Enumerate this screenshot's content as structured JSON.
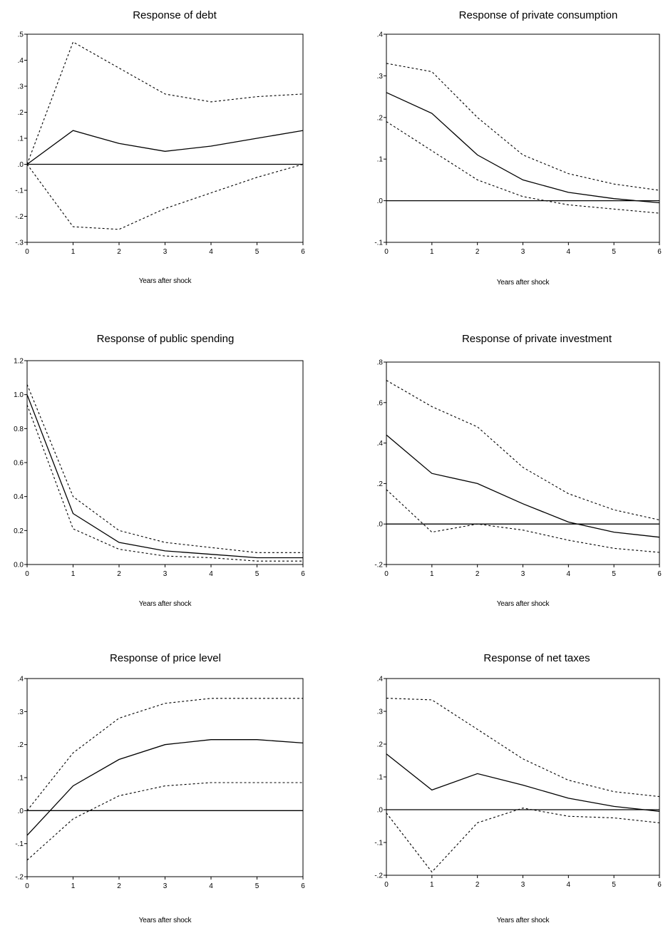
{
  "chart_data": [
    {
      "type": "line",
      "title": "Response of debt",
      "xlabel": "Years after shock",
      "ylabel": "",
      "x": [
        0,
        1,
        2,
        3,
        4,
        5,
        6
      ],
      "xlim": [
        0,
        6
      ],
      "ylim": [
        -0.3,
        0.5
      ],
      "yticks": [
        -0.3,
        -0.2,
        -0.1,
        0.0,
        0.1,
        0.2,
        0.3,
        0.4,
        0.5
      ],
      "ytick_labels": [
        "-.3",
        "-.2",
        "-.1",
        ".0",
        ".1",
        ".2",
        ".3",
        ".4",
        ".5"
      ],
      "xticks": [
        "0",
        "1",
        "2",
        "3",
        "4",
        "5",
        "6"
      ],
      "zero_line": true,
      "series": [
        {
          "role": "response",
          "style": "solid",
          "values": [
            0.0,
            0.13,
            0.08,
            0.05,
            0.07,
            0.1,
            0.13
          ]
        },
        {
          "role": "upper",
          "style": "dashed",
          "values": [
            0.0,
            0.47,
            0.37,
            0.27,
            0.24,
            0.26,
            0.27
          ]
        },
        {
          "role": "lower",
          "style": "dashed",
          "values": [
            0.0,
            -0.24,
            -0.25,
            -0.17,
            -0.11,
            -0.05,
            0.0
          ]
        }
      ]
    },
    {
      "type": "line",
      "title": "Response of private consumption",
      "xlabel": "Years after shock",
      "ylabel": "",
      "x": [
        0,
        1,
        2,
        3,
        4,
        5,
        6
      ],
      "xlim": [
        0,
        6
      ],
      "ylim": [
        -0.1,
        0.4
      ],
      "yticks": [
        -0.1,
        0.0,
        0.1,
        0.2,
        0.3,
        0.4
      ],
      "ytick_labels": [
        "-.1",
        ".0",
        ".1",
        ".2",
        ".3",
        ".4"
      ],
      "xticks": [
        "0",
        "1",
        "2",
        "3",
        "4",
        "5",
        "6"
      ],
      "zero_line": true,
      "series": [
        {
          "role": "response",
          "style": "solid",
          "values": [
            0.26,
            0.21,
            0.11,
            0.05,
            0.02,
            0.005,
            -0.005
          ]
        },
        {
          "role": "upper",
          "style": "dashed",
          "values": [
            0.33,
            0.31,
            0.2,
            0.11,
            0.065,
            0.04,
            0.025
          ]
        },
        {
          "role": "lower",
          "style": "dashed",
          "values": [
            0.19,
            0.12,
            0.05,
            0.01,
            -0.01,
            -0.02,
            -0.03
          ]
        }
      ]
    },
    {
      "type": "line",
      "title": "Response of public spending",
      "xlabel": "Years after shock",
      "ylabel": "",
      "x": [
        0,
        1,
        2,
        3,
        4,
        5,
        6
      ],
      "xlim": [
        0,
        6
      ],
      "ylim": [
        0.0,
        1.2
      ],
      "yticks": [
        0.0,
        0.2,
        0.4,
        0.6,
        0.8,
        1.0,
        1.2
      ],
      "ytick_labels": [
        "0.0",
        "0.2",
        "0.4",
        "0.6",
        "0.8",
        "1.0",
        "1.2"
      ],
      "xticks": [
        "0",
        "1",
        "2",
        "3",
        "4",
        "5",
        "6"
      ],
      "zero_line": false,
      "series": [
        {
          "role": "response",
          "style": "solid",
          "values": [
            1.0,
            0.3,
            0.13,
            0.08,
            0.06,
            0.04,
            0.04
          ]
        },
        {
          "role": "upper",
          "style": "dashed",
          "values": [
            1.06,
            0.4,
            0.2,
            0.13,
            0.1,
            0.07,
            0.07
          ]
        },
        {
          "role": "lower",
          "style": "dashed",
          "values": [
            0.94,
            0.21,
            0.09,
            0.05,
            0.04,
            0.02,
            0.02
          ]
        }
      ]
    },
    {
      "type": "line",
      "title": "Response of private investment",
      "xlabel": "Years after shock",
      "ylabel": "",
      "x": [
        0,
        1,
        2,
        3,
        4,
        5,
        6
      ],
      "xlim": [
        0,
        6
      ],
      "ylim": [
        -0.2,
        0.8
      ],
      "yticks": [
        -0.2,
        0.0,
        0.2,
        0.4,
        0.6,
        0.8
      ],
      "ytick_labels": [
        "-.2",
        ".0",
        ".2",
        ".4",
        ".6",
        ".8"
      ],
      "xticks": [
        "0",
        "1",
        "2",
        "3",
        "4",
        "5",
        "6"
      ],
      "zero_line": true,
      "series": [
        {
          "role": "response",
          "style": "solid",
          "values": [
            0.44,
            0.25,
            0.2,
            0.1,
            0.01,
            -0.04,
            -0.065
          ]
        },
        {
          "role": "upper",
          "style": "dashed",
          "values": [
            0.71,
            0.58,
            0.48,
            0.28,
            0.15,
            0.07,
            0.02
          ]
        },
        {
          "role": "lower",
          "style": "dashed",
          "values": [
            0.17,
            -0.04,
            0.0,
            -0.03,
            -0.08,
            -0.12,
            -0.14
          ]
        }
      ]
    },
    {
      "type": "line",
      "title": "Response of price level",
      "xlabel": "Years after shock",
      "ylabel": "",
      "x": [
        0,
        1,
        2,
        3,
        4,
        5,
        6
      ],
      "xlim": [
        0,
        6
      ],
      "ylim": [
        -0.2,
        0.4
      ],
      "yticks": [
        -0.2,
        -0.1,
        0.0,
        0.1,
        0.2,
        0.3,
        0.4
      ],
      "ytick_labels": [
        "-.2",
        "-.1",
        ".0",
        ".1",
        ".2",
        ".3",
        ".4"
      ],
      "xticks": [
        "0",
        "1",
        "2",
        "3",
        "4",
        "5",
        "6"
      ],
      "zero_line": true,
      "series": [
        {
          "role": "response",
          "style": "solid",
          "values": [
            -0.075,
            0.075,
            0.155,
            0.2,
            0.215,
            0.215,
            0.205
          ]
        },
        {
          "role": "upper",
          "style": "dashed",
          "values": [
            0.0,
            0.175,
            0.28,
            0.325,
            0.34,
            0.34,
            0.34
          ]
        },
        {
          "role": "lower",
          "style": "dashed",
          "values": [
            -0.15,
            -0.025,
            0.045,
            0.075,
            0.085,
            0.085,
            0.085
          ]
        }
      ]
    },
    {
      "type": "line",
      "title": "Response of net taxes",
      "xlabel": "Years after shock",
      "ylabel": "",
      "x": [
        0,
        1,
        2,
        3,
        4,
        5,
        6
      ],
      "xlim": [
        0,
        6
      ],
      "ylim": [
        -0.2,
        0.4
      ],
      "yticks": [
        -0.2,
        -0.1,
        0.0,
        0.1,
        0.2,
        0.3,
        0.4
      ],
      "ytick_labels": [
        "-.2",
        "-.1",
        ".0",
        ".1",
        ".2",
        ".3",
        ".4"
      ],
      "xticks": [
        "0",
        "1",
        "2",
        "3",
        "4",
        "5",
        "6"
      ],
      "zero_line": true,
      "series": [
        {
          "role": "response",
          "style": "solid",
          "values": [
            0.17,
            0.06,
            0.11,
            0.075,
            0.035,
            0.01,
            -0.005
          ]
        },
        {
          "role": "upper",
          "style": "dashed",
          "values": [
            0.34,
            0.335,
            0.245,
            0.155,
            0.09,
            0.055,
            0.04
          ]
        },
        {
          "role": "lower",
          "style": "dashed",
          "values": [
            -0.01,
            -0.19,
            -0.04,
            0.005,
            -0.02,
            -0.025,
            -0.04
          ]
        }
      ]
    }
  ]
}
